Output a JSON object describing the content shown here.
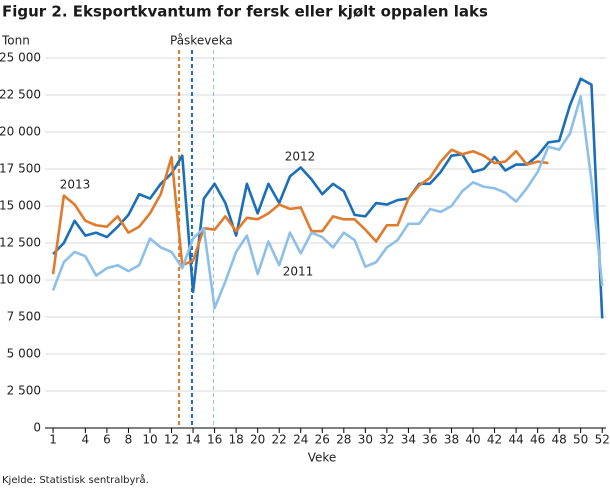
{
  "chart_data": {
    "type": "line",
    "title": "Figur 2. Eksportkvantum for fersk eller kjølt oppalen laks",
    "y_axis_label": "Tonn",
    "x_axis_label": "Veke",
    "source": "Kjelde: Statistisk sentralbyrå.",
    "easter_label": "Påskeveka",
    "easter_lines": [
      {
        "x": 12.7,
        "color": "#e07b2c"
      },
      {
        "x": 13.9,
        "color": "#1a6fb8"
      },
      {
        "x": 15.9,
        "color": "#8dc0e8"
      }
    ],
    "x": [
      1,
      2,
      3,
      4,
      5,
      6,
      7,
      8,
      9,
      10,
      11,
      12,
      13,
      14,
      15,
      16,
      17,
      18,
      19,
      20,
      21,
      22,
      23,
      24,
      25,
      26,
      27,
      28,
      29,
      30,
      31,
      32,
      33,
      34,
      35,
      36,
      37,
      38,
      39,
      40,
      41,
      42,
      43,
      44,
      45,
      46,
      47,
      48,
      49,
      50,
      51,
      52
    ],
    "series": [
      {
        "name": "2012",
        "color": "#1a6fb8",
        "values": [
          11750,
          12500,
          14000,
          13000,
          13200,
          12900,
          13600,
          14400,
          15800,
          15500,
          16500,
          17200,
          18400,
          9200,
          15500,
          16500,
          15200,
          13000,
          16500,
          14500,
          16500,
          15200,
          17000,
          17600,
          16800,
          15800,
          16500,
          16000,
          14400,
          14300,
          15200,
          15100,
          15400,
          15500,
          16500,
          16500,
          17300,
          18400,
          18500,
          17300,
          17500,
          18300,
          17400,
          17800,
          17800,
          18400,
          19300,
          19400,
          21800,
          23600,
          23200,
          7400
        ]
      },
      {
        "name": "2013",
        "color": "#e07b2c",
        "values": [
          10400,
          15700,
          15100,
          14000,
          13700,
          13600,
          14300,
          13200,
          13600,
          14500,
          15800,
          18300,
          11000,
          11300,
          13500,
          13400,
          14300,
          13300,
          14200,
          14100,
          14500,
          15100,
          14800,
          14900,
          13300,
          13300,
          14300,
          14100,
          14100,
          13400,
          12600,
          13700,
          13700,
          15500,
          16400,
          16900,
          18000,
          18800,
          18500,
          18700,
          18400,
          17900,
          18000,
          18700,
          17800,
          18000,
          17900,
          null,
          null,
          null,
          null,
          null
        ]
      },
      {
        "name": "2011",
        "color": "#8dc0e8",
        "values": [
          9300,
          11200,
          11900,
          11600,
          10300,
          10800,
          11000,
          10600,
          11000,
          12800,
          12200,
          11900,
          10800,
          12800,
          13500,
          8100,
          9900,
          11900,
          13000,
          10400,
          12600,
          11000,
          13200,
          11800,
          13200,
          12900,
          12200,
          13200,
          12700,
          10900,
          11200,
          12200,
          12700,
          13800,
          13800,
          14800,
          14600,
          15000,
          16000,
          16600,
          16300,
          16200,
          15900,
          15300,
          16200,
          17300,
          19000,
          18800,
          19900,
          22400,
          16700,
          9600
        ]
      }
    ],
    "xlim": [
      0.25,
      52.35
    ],
    "xticks": [
      1,
      4,
      6,
      8,
      10,
      12,
      14,
      16,
      18,
      20,
      22,
      24,
      26,
      28,
      30,
      32,
      34,
      36,
      38,
      40,
      42,
      44,
      46,
      48,
      50,
      52
    ],
    "ylim": [
      0,
      25000
    ],
    "yticks": [
      0,
      {
        "value": 2500,
        "label": "2 500"
      },
      {
        "value": 5000,
        "label": "5 000"
      },
      {
        "value": 7500,
        "label": "7 500"
      },
      {
        "value": 10000,
        "label": "10 000"
      },
      {
        "value": 12500,
        "label": "12 500"
      },
      {
        "value": 15000,
        "label": "15 000"
      },
      {
        "value": 17500,
        "label": "17 500"
      },
      {
        "value": 20000,
        "label": "20 000"
      },
      {
        "value": 22500,
        "label": "22 500"
      },
      {
        "value": 25000,
        "label": "25 000"
      }
    ],
    "grid": true
  }
}
